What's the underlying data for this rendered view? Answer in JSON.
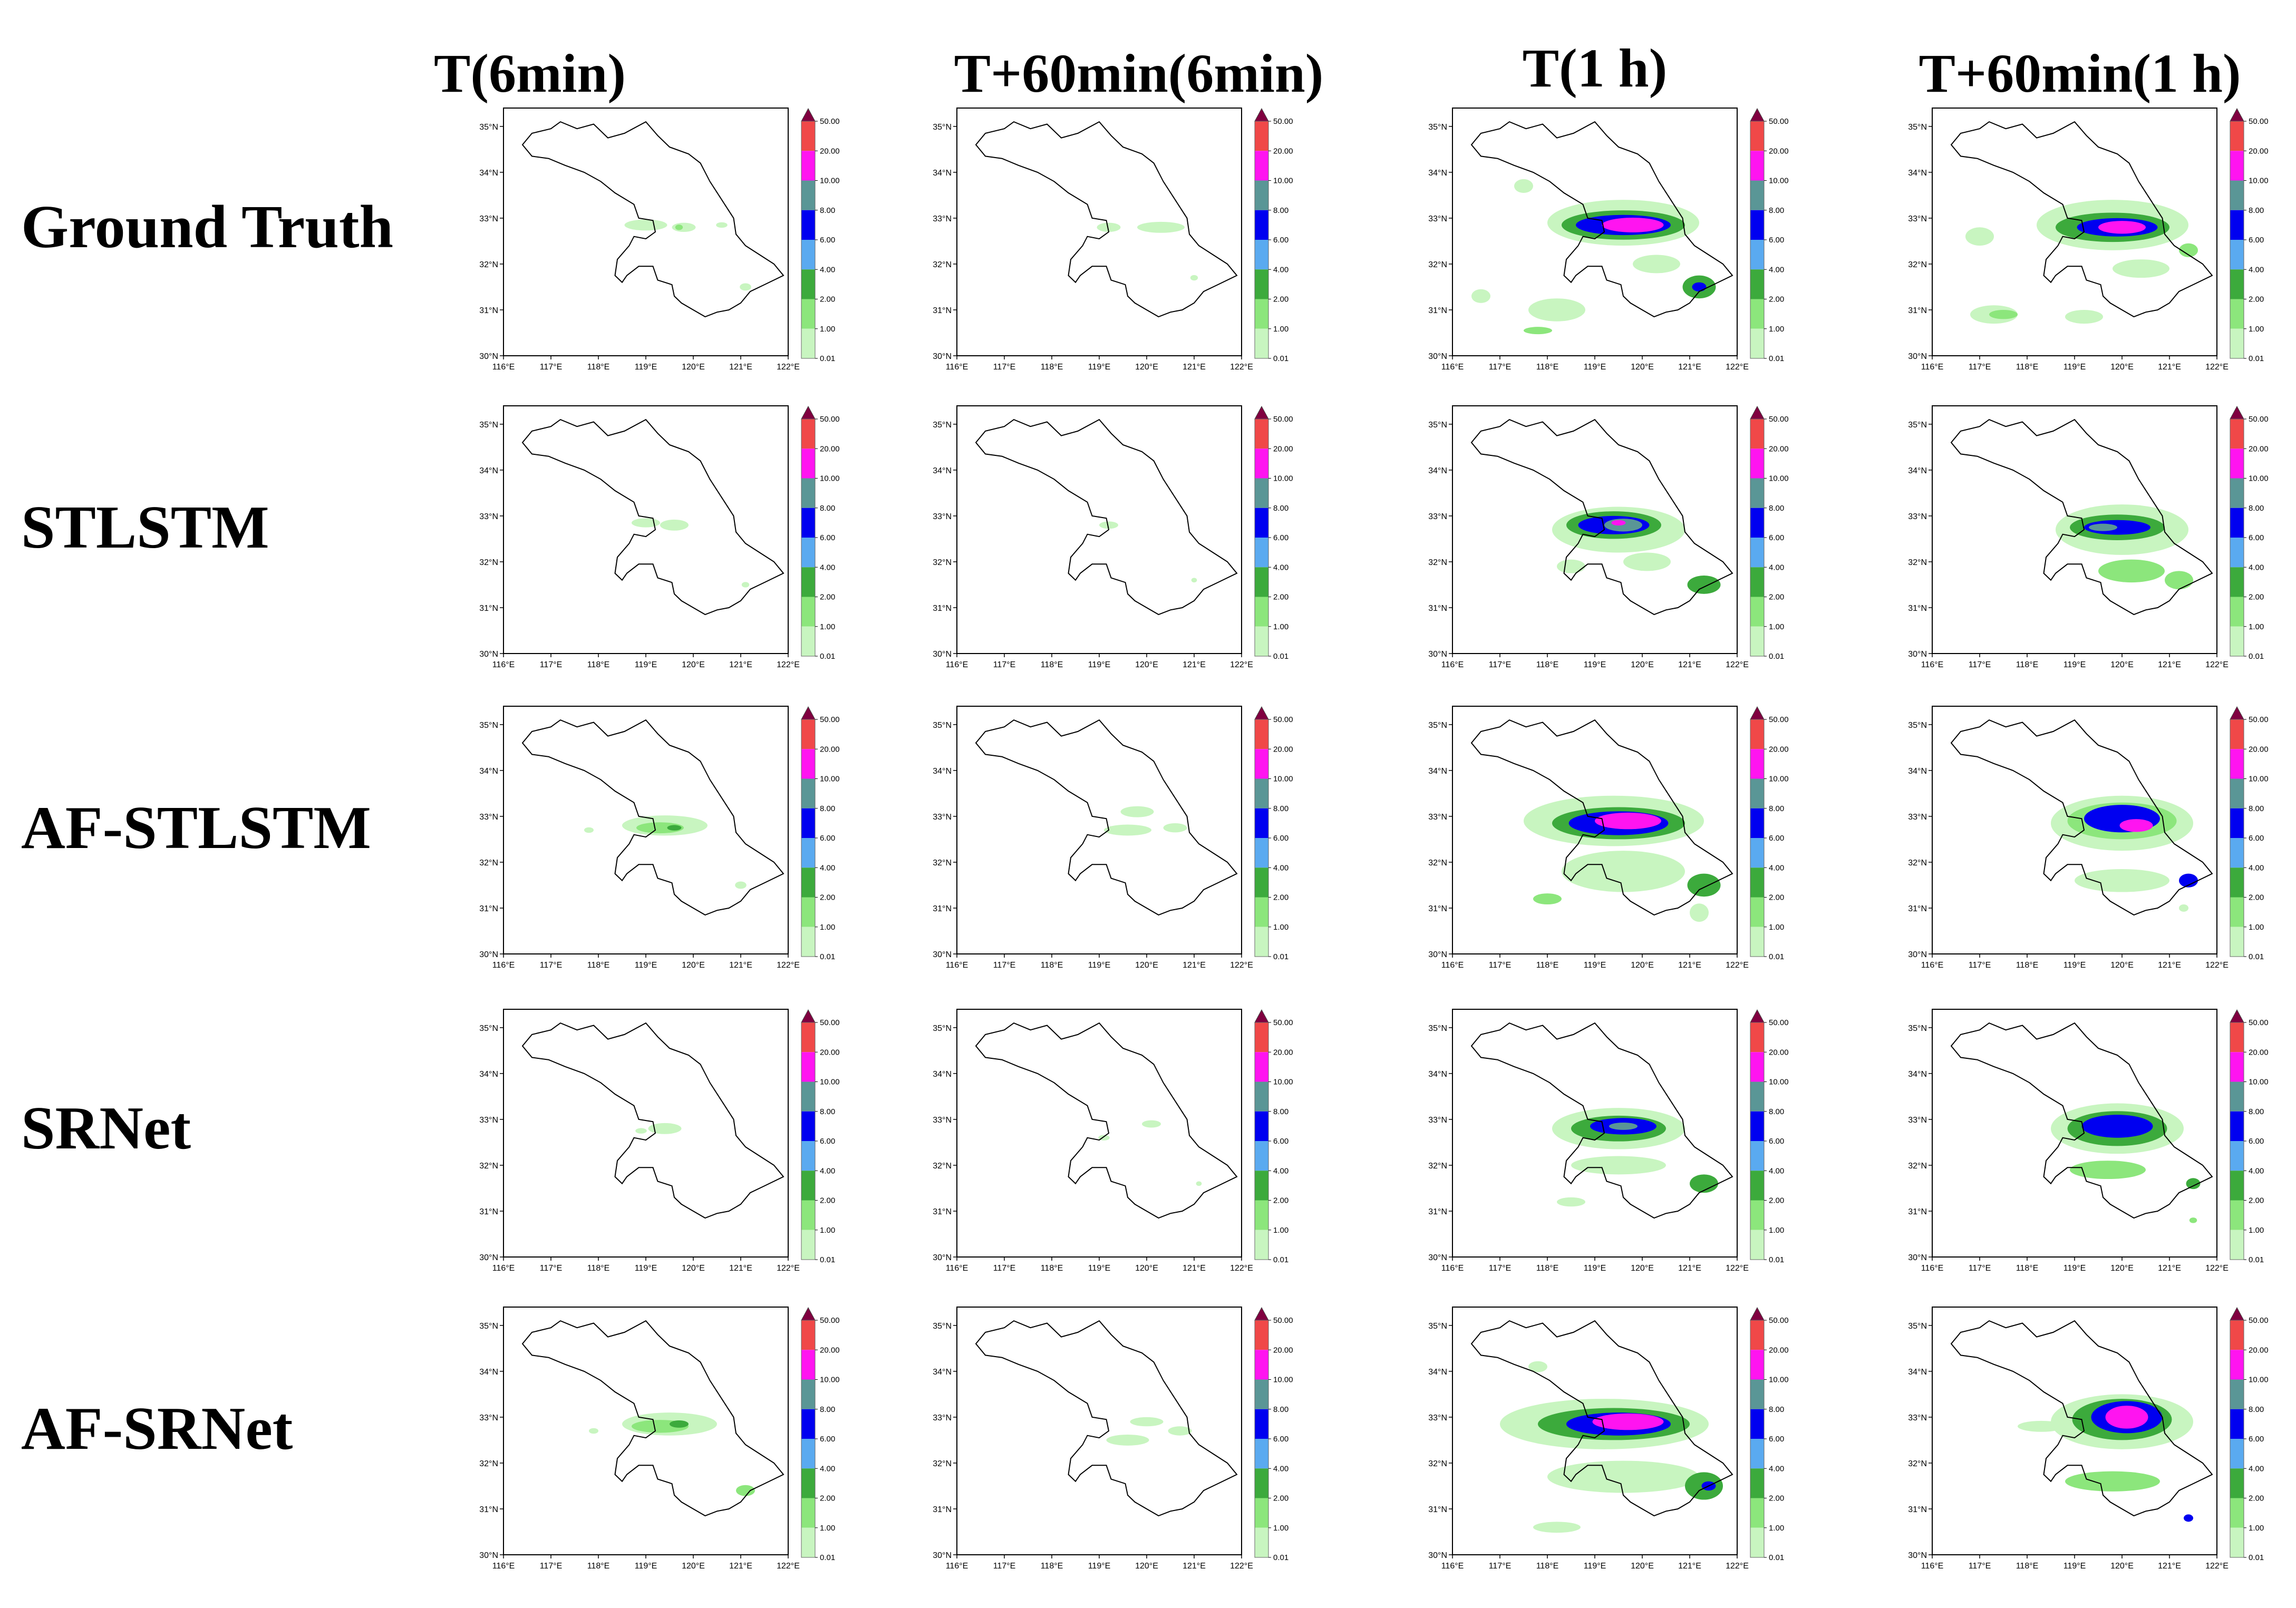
{
  "column_titles": [
    "T(6min)",
    "T+60min(6min)",
    "T(1 h)",
    "T+60min(1 h)"
  ],
  "row_titles": [
    "Ground Truth",
    "STLSTM",
    "AF-STLSTM",
    "SRNet",
    "AF-SRNet"
  ],
  "axes": {
    "lon_ticks": [
      "116°E",
      "117°E",
      "118°E",
      "119°E",
      "120°E",
      "121°E",
      "122°E"
    ],
    "lat_ticks": [
      "35°N",
      "34°N",
      "33°N",
      "32°N",
      "31°N",
      "30°N"
    ],
    "lon_range": [
      116,
      122
    ],
    "lat_range": [
      30,
      35.4
    ]
  },
  "colorbar": {
    "levels": [
      "50.00",
      "20.00",
      "10.00",
      "8.00",
      "6.00",
      "4.00",
      "2.00",
      "1.00",
      "0.01"
    ],
    "colors": [
      "#f04848",
      "#ff14f0",
      "#5a9696",
      "#0000f0",
      "#5aaaf0",
      "#3caa3c",
      "#8ce67c",
      "#c8f5c0"
    ],
    "extend_color": "#800040"
  },
  "province_outline_color": "#000000",
  "panels": [
    {
      "row": 0,
      "col": 0,
      "blobs": [
        {
          "lon": 119.0,
          "lat": 32.85,
          "rx": 0.45,
          "ry": 0.12,
          "level": 0
        },
        {
          "lon": 119.8,
          "lat": 32.8,
          "rx": 0.25,
          "ry": 0.1,
          "level": 0
        },
        {
          "lon": 119.7,
          "lat": 32.8,
          "rx": 0.08,
          "ry": 0.06,
          "level": 1
        },
        {
          "lon": 121.1,
          "lat": 31.5,
          "rx": 0.12,
          "ry": 0.08,
          "level": 0
        },
        {
          "lon": 120.6,
          "lat": 32.85,
          "rx": 0.12,
          "ry": 0.06,
          "level": 0
        }
      ]
    },
    {
      "row": 0,
      "col": 1,
      "blobs": [
        {
          "lon": 119.2,
          "lat": 32.8,
          "rx": 0.25,
          "ry": 0.1,
          "level": 0
        },
        {
          "lon": 120.3,
          "lat": 32.8,
          "rx": 0.5,
          "ry": 0.12,
          "level": 0
        },
        {
          "lon": 121.0,
          "lat": 31.7,
          "rx": 0.08,
          "ry": 0.06,
          "level": 0
        }
      ]
    },
    {
      "row": 0,
      "col": 2,
      "blobs": [
        {
          "lon": 119.6,
          "lat": 32.9,
          "rx": 1.6,
          "ry": 0.5,
          "level": 0
        },
        {
          "lon": 119.6,
          "lat": 32.85,
          "rx": 1.3,
          "ry": 0.32,
          "level": 2
        },
        {
          "lon": 119.6,
          "lat": 32.85,
          "rx": 1.0,
          "ry": 0.22,
          "level": 4
        },
        {
          "lon": 119.8,
          "lat": 32.85,
          "rx": 0.65,
          "ry": 0.16,
          "level": 6
        },
        {
          "lon": 118.2,
          "lat": 31.0,
          "rx": 0.6,
          "ry": 0.25,
          "level": 0
        },
        {
          "lon": 120.3,
          "lat": 32.0,
          "rx": 0.5,
          "ry": 0.2,
          "level": 0
        },
        {
          "lon": 121.2,
          "lat": 31.5,
          "rx": 0.35,
          "ry": 0.25,
          "level": 2
        },
        {
          "lon": 121.2,
          "lat": 31.5,
          "rx": 0.15,
          "ry": 0.1,
          "level": 4
        },
        {
          "lon": 116.6,
          "lat": 31.3,
          "rx": 0.2,
          "ry": 0.15,
          "level": 0
        },
        {
          "lon": 117.8,
          "lat": 30.55,
          "rx": 0.3,
          "ry": 0.08,
          "level": 1
        },
        {
          "lon": 117.5,
          "lat": 33.7,
          "rx": 0.2,
          "ry": 0.15,
          "level": 0
        }
      ]
    },
    {
      "row": 0,
      "col": 3,
      "blobs": [
        {
          "lon": 119.8,
          "lat": 32.85,
          "rx": 1.6,
          "ry": 0.55,
          "level": 0
        },
        {
          "lon": 119.8,
          "lat": 32.8,
          "rx": 1.2,
          "ry": 0.32,
          "level": 2
        },
        {
          "lon": 119.9,
          "lat": 32.8,
          "rx": 0.85,
          "ry": 0.2,
          "level": 4
        },
        {
          "lon": 120.0,
          "lat": 32.8,
          "rx": 0.5,
          "ry": 0.14,
          "level": 6
        },
        {
          "lon": 117.3,
          "lat": 30.9,
          "rx": 0.5,
          "ry": 0.2,
          "level": 0
        },
        {
          "lon": 117.5,
          "lat": 30.9,
          "rx": 0.3,
          "ry": 0.1,
          "level": 1
        },
        {
          "lon": 119.2,
          "lat": 30.85,
          "rx": 0.4,
          "ry": 0.15,
          "level": 0
        },
        {
          "lon": 120.4,
          "lat": 31.9,
          "rx": 0.6,
          "ry": 0.2,
          "level": 0
        },
        {
          "lon": 121.4,
          "lat": 32.3,
          "rx": 0.2,
          "ry": 0.15,
          "level": 1
        },
        {
          "lon": 117.0,
          "lat": 32.6,
          "rx": 0.3,
          "ry": 0.2,
          "level": 0
        }
      ]
    },
    {
      "row": 1,
      "col": 0,
      "blobs": [
        {
          "lon": 119.0,
          "lat": 32.85,
          "rx": 0.3,
          "ry": 0.1,
          "level": 0
        },
        {
          "lon": 119.6,
          "lat": 32.8,
          "rx": 0.3,
          "ry": 0.12,
          "level": 0
        },
        {
          "lon": 121.1,
          "lat": 31.5,
          "rx": 0.08,
          "ry": 0.06,
          "level": 0
        }
      ]
    },
    {
      "row": 1,
      "col": 1,
      "blobs": [
        {
          "lon": 119.2,
          "lat": 32.8,
          "rx": 0.2,
          "ry": 0.08,
          "level": 0
        },
        {
          "lon": 121.0,
          "lat": 31.6,
          "rx": 0.06,
          "ry": 0.05,
          "level": 0
        }
      ]
    },
    {
      "row": 1,
      "col": 2,
      "blobs": [
        {
          "lon": 119.5,
          "lat": 32.7,
          "rx": 1.4,
          "ry": 0.5,
          "level": 0
        },
        {
          "lon": 119.4,
          "lat": 32.8,
          "rx": 1.0,
          "ry": 0.3,
          "level": 2
        },
        {
          "lon": 119.4,
          "lat": 32.8,
          "rx": 0.75,
          "ry": 0.2,
          "level": 4
        },
        {
          "lon": 119.6,
          "lat": 32.8,
          "rx": 0.4,
          "ry": 0.14,
          "level": 5
        },
        {
          "lon": 119.5,
          "lat": 32.85,
          "rx": 0.15,
          "ry": 0.06,
          "level": 6
        },
        {
          "lon": 120.1,
          "lat": 32.0,
          "rx": 0.5,
          "ry": 0.2,
          "level": 0
        },
        {
          "lon": 121.3,
          "lat": 31.5,
          "rx": 0.35,
          "ry": 0.2,
          "level": 2
        },
        {
          "lon": 118.5,
          "lat": 31.9,
          "rx": 0.3,
          "ry": 0.15,
          "level": 0
        }
      ]
    },
    {
      "row": 1,
      "col": 3,
      "blobs": [
        {
          "lon": 120.0,
          "lat": 32.7,
          "rx": 1.4,
          "ry": 0.55,
          "level": 0
        },
        {
          "lon": 119.9,
          "lat": 32.75,
          "rx": 1.0,
          "ry": 0.28,
          "level": 2
        },
        {
          "lon": 119.9,
          "lat": 32.75,
          "rx": 0.7,
          "ry": 0.16,
          "level": 4
        },
        {
          "lon": 119.6,
          "lat": 32.75,
          "rx": 0.3,
          "ry": 0.08,
          "level": 5
        },
        {
          "lon": 120.2,
          "lat": 31.8,
          "rx": 0.7,
          "ry": 0.25,
          "level": 1
        },
        {
          "lon": 121.2,
          "lat": 31.6,
          "rx": 0.3,
          "ry": 0.2,
          "level": 1
        }
      ]
    },
    {
      "row": 2,
      "col": 0,
      "blobs": [
        {
          "lon": 119.4,
          "lat": 32.8,
          "rx": 0.9,
          "ry": 0.22,
          "level": 0
        },
        {
          "lon": 119.3,
          "lat": 32.75,
          "rx": 0.5,
          "ry": 0.12,
          "level": 1
        },
        {
          "lon": 119.6,
          "lat": 32.75,
          "rx": 0.15,
          "ry": 0.06,
          "level": 2
        },
        {
          "lon": 117.8,
          "lat": 32.7,
          "rx": 0.1,
          "ry": 0.06,
          "level": 0
        },
        {
          "lon": 121.0,
          "lat": 31.5,
          "rx": 0.12,
          "ry": 0.08,
          "level": 0
        }
      ]
    },
    {
      "row": 2,
      "col": 1,
      "blobs": [
        {
          "lon": 119.8,
          "lat": 33.1,
          "rx": 0.35,
          "ry": 0.12,
          "level": 0
        },
        {
          "lon": 119.6,
          "lat": 32.7,
          "rx": 0.5,
          "ry": 0.12,
          "level": 0
        },
        {
          "lon": 120.6,
          "lat": 32.75,
          "rx": 0.25,
          "ry": 0.1,
          "level": 0
        }
      ]
    },
    {
      "row": 2,
      "col": 2,
      "blobs": [
        {
          "lon": 119.4,
          "lat": 32.9,
          "rx": 1.9,
          "ry": 0.55,
          "level": 0
        },
        {
          "lon": 119.5,
          "lat": 32.85,
          "rx": 1.4,
          "ry": 0.35,
          "level": 2
        },
        {
          "lon": 119.5,
          "lat": 32.85,
          "rx": 1.05,
          "ry": 0.26,
          "level": 4
        },
        {
          "lon": 119.7,
          "lat": 32.9,
          "rx": 0.7,
          "ry": 0.18,
          "level": 6
        },
        {
          "lon": 119.6,
          "lat": 31.8,
          "rx": 1.3,
          "ry": 0.45,
          "level": 0
        },
        {
          "lon": 118.0,
          "lat": 31.2,
          "rx": 0.3,
          "ry": 0.12,
          "level": 1
        },
        {
          "lon": 121.3,
          "lat": 31.5,
          "rx": 0.35,
          "ry": 0.25,
          "level": 2
        },
        {
          "lon": 121.2,
          "lat": 30.9,
          "rx": 0.2,
          "ry": 0.2,
          "level": 0
        }
      ]
    },
    {
      "row": 2,
      "col": 3,
      "blobs": [
        {
          "lon": 120.0,
          "lat": 32.85,
          "rx": 1.5,
          "ry": 0.6,
          "level": 0
        },
        {
          "lon": 120.0,
          "lat": 32.9,
          "rx": 1.15,
          "ry": 0.4,
          "level": 1
        },
        {
          "lon": 120.0,
          "lat": 32.95,
          "rx": 0.8,
          "ry": 0.3,
          "level": 4
        },
        {
          "lon": 120.3,
          "lat": 32.8,
          "rx": 0.35,
          "ry": 0.14,
          "level": 6
        },
        {
          "lon": 120.0,
          "lat": 31.6,
          "rx": 1.0,
          "ry": 0.25,
          "level": 0
        },
        {
          "lon": 121.4,
          "lat": 31.6,
          "rx": 0.2,
          "ry": 0.15,
          "level": 4
        },
        {
          "lon": 121.3,
          "lat": 31.0,
          "rx": 0.1,
          "ry": 0.08,
          "level": 0
        }
      ]
    },
    {
      "row": 3,
      "col": 0,
      "blobs": [
        {
          "lon": 119.4,
          "lat": 32.8,
          "rx": 0.35,
          "ry": 0.12,
          "level": 0
        },
        {
          "lon": 118.9,
          "lat": 32.75,
          "rx": 0.12,
          "ry": 0.06,
          "level": 0
        }
      ]
    },
    {
      "row": 3,
      "col": 1,
      "blobs": [
        {
          "lon": 120.1,
          "lat": 32.9,
          "rx": 0.2,
          "ry": 0.08,
          "level": 0
        },
        {
          "lon": 119.1,
          "lat": 32.6,
          "rx": 0.12,
          "ry": 0.06,
          "level": 0
        },
        {
          "lon": 121.1,
          "lat": 31.6,
          "rx": 0.06,
          "ry": 0.05,
          "level": 0
        }
      ]
    },
    {
      "row": 3,
      "col": 2,
      "blobs": [
        {
          "lon": 119.5,
          "lat": 32.8,
          "rx": 1.4,
          "ry": 0.45,
          "level": 0
        },
        {
          "lon": 119.5,
          "lat": 32.8,
          "rx": 1.0,
          "ry": 0.28,
          "level": 2
        },
        {
          "lon": 119.6,
          "lat": 32.85,
          "rx": 0.7,
          "ry": 0.18,
          "level": 4
        },
        {
          "lon": 119.6,
          "lat": 32.85,
          "rx": 0.3,
          "ry": 0.08,
          "level": 5
        },
        {
          "lon": 119.5,
          "lat": 32.0,
          "rx": 1.0,
          "ry": 0.2,
          "level": 0
        },
        {
          "lon": 121.3,
          "lat": 31.6,
          "rx": 0.3,
          "ry": 0.2,
          "level": 2
        },
        {
          "lon": 118.5,
          "lat": 31.2,
          "rx": 0.3,
          "ry": 0.1,
          "level": 0
        }
      ]
    },
    {
      "row": 3,
      "col": 3,
      "blobs": [
        {
          "lon": 119.9,
          "lat": 32.8,
          "rx": 1.4,
          "ry": 0.55,
          "level": 0
        },
        {
          "lon": 119.9,
          "lat": 32.8,
          "rx": 1.05,
          "ry": 0.38,
          "level": 2
        },
        {
          "lon": 119.9,
          "lat": 32.85,
          "rx": 0.75,
          "ry": 0.25,
          "level": 4
        },
        {
          "lon": 119.7,
          "lat": 31.9,
          "rx": 0.8,
          "ry": 0.2,
          "level": 1
        },
        {
          "lon": 121.5,
          "lat": 31.6,
          "rx": 0.15,
          "ry": 0.12,
          "level": 2
        },
        {
          "lon": 121.5,
          "lat": 30.8,
          "rx": 0.08,
          "ry": 0.06,
          "level": 1
        }
      ]
    },
    {
      "row": 4,
      "col": 0,
      "blobs": [
        {
          "lon": 119.5,
          "lat": 32.85,
          "rx": 1.0,
          "ry": 0.25,
          "level": 0
        },
        {
          "lon": 119.3,
          "lat": 32.8,
          "rx": 0.6,
          "ry": 0.14,
          "level": 1
        },
        {
          "lon": 119.7,
          "lat": 32.85,
          "rx": 0.2,
          "ry": 0.08,
          "level": 2
        },
        {
          "lon": 117.9,
          "lat": 32.7,
          "rx": 0.1,
          "ry": 0.06,
          "level": 0
        },
        {
          "lon": 121.1,
          "lat": 31.4,
          "rx": 0.2,
          "ry": 0.12,
          "level": 1
        }
      ]
    },
    {
      "row": 4,
      "col": 1,
      "blobs": [
        {
          "lon": 120.0,
          "lat": 32.9,
          "rx": 0.35,
          "ry": 0.1,
          "level": 0
        },
        {
          "lon": 119.6,
          "lat": 32.5,
          "rx": 0.45,
          "ry": 0.12,
          "level": 0
        },
        {
          "lon": 120.7,
          "lat": 32.7,
          "rx": 0.25,
          "ry": 0.1,
          "level": 0
        }
      ]
    },
    {
      "row": 4,
      "col": 2,
      "blobs": [
        {
          "lon": 119.2,
          "lat": 32.85,
          "rx": 2.2,
          "ry": 0.55,
          "level": 0
        },
        {
          "lon": 119.4,
          "lat": 32.85,
          "rx": 1.6,
          "ry": 0.35,
          "level": 2
        },
        {
          "lon": 119.5,
          "lat": 32.85,
          "rx": 1.1,
          "ry": 0.25,
          "level": 4
        },
        {
          "lon": 119.7,
          "lat": 32.9,
          "rx": 0.75,
          "ry": 0.18,
          "level": 6
        },
        {
          "lon": 119.6,
          "lat": 31.7,
          "rx": 1.6,
          "ry": 0.35,
          "level": 0
        },
        {
          "lon": 121.3,
          "lat": 31.5,
          "rx": 0.4,
          "ry": 0.3,
          "level": 2
        },
        {
          "lon": 121.4,
          "lat": 31.5,
          "rx": 0.15,
          "ry": 0.1,
          "level": 4
        },
        {
          "lon": 118.2,
          "lat": 30.6,
          "rx": 0.5,
          "ry": 0.12,
          "level": 0
        },
        {
          "lon": 117.8,
          "lat": 34.1,
          "rx": 0.2,
          "ry": 0.12,
          "level": 0
        }
      ]
    },
    {
      "row": 4,
      "col": 3,
      "blobs": [
        {
          "lon": 120.0,
          "lat": 32.9,
          "rx": 1.5,
          "ry": 0.6,
          "level": 0
        },
        {
          "lon": 120.0,
          "lat": 32.95,
          "rx": 1.05,
          "ry": 0.45,
          "level": 2
        },
        {
          "lon": 120.1,
          "lat": 33.0,
          "rx": 0.75,
          "ry": 0.35,
          "level": 4
        },
        {
          "lon": 120.1,
          "lat": 33.0,
          "rx": 0.45,
          "ry": 0.25,
          "level": 6
        },
        {
          "lon": 119.8,
          "lat": 31.6,
          "rx": 1.0,
          "ry": 0.22,
          "level": 1
        },
        {
          "lon": 118.3,
          "lat": 32.8,
          "rx": 0.5,
          "ry": 0.12,
          "level": 0
        },
        {
          "lon": 121.4,
          "lat": 30.8,
          "rx": 0.1,
          "ry": 0.08,
          "level": 4
        }
      ]
    }
  ]
}
